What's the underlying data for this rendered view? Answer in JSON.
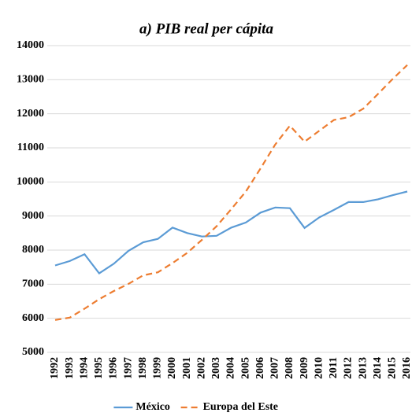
{
  "chart_data": {
    "type": "line",
    "title": "a) PIB real per cápita",
    "categories": [
      "1992",
      "1993",
      "1994",
      "1995",
      "1996",
      "1997",
      "1998",
      "1999",
      "2000",
      "2001",
      "2002",
      "2003",
      "2004",
      "2005",
      "2006",
      "2007",
      "2008",
      "2009",
      "2010",
      "2011",
      "2012",
      "2013",
      "2014",
      "2015",
      "2016"
    ],
    "series": [
      {
        "name": "México",
        "color": "#5b9bd5",
        "dashed": false,
        "values": [
          7550,
          7680,
          7880,
          7320,
          7600,
          7980,
          8230,
          8330,
          8660,
          8500,
          8400,
          8420,
          8660,
          8810,
          9100,
          9250,
          9230,
          8650,
          8960,
          9180,
          9410,
          9410,
          9490,
          9610,
          9720
        ]
      },
      {
        "name": "Europa del Este",
        "color": "#ed7d31",
        "dashed": true,
        "values": [
          5950,
          6020,
          6280,
          6560,
          6800,
          7010,
          7260,
          7350,
          7620,
          7920,
          8300,
          8700,
          9200,
          9720,
          10400,
          11100,
          11650,
          11180,
          11500,
          11820,
          11900,
          12150,
          12580,
          13020,
          13430
        ]
      }
    ],
    "ylim": [
      5000,
      14000
    ],
    "yticks": [
      5000,
      6000,
      7000,
      8000,
      9000,
      10000,
      11000,
      12000,
      13000,
      14000
    ],
    "grid": true,
    "legend": "bottom"
  }
}
